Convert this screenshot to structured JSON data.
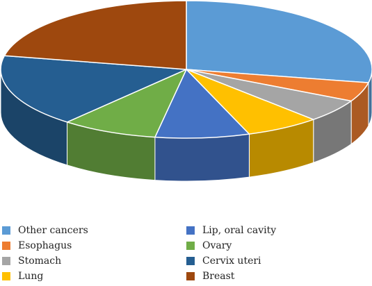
{
  "chart_data": {
    "type": "pie",
    "style": "3d",
    "legend_position": "bottom",
    "slices": [
      {
        "label": "Other cancers",
        "value": 28.1,
        "color": "#5B9BD5"
      },
      {
        "label": "Esophagus",
        "value": 4.5,
        "color": "#ED7D31"
      },
      {
        "label": "Stomach",
        "value": 5.4,
        "color": "#A5A5A5"
      },
      {
        "label": "Lung",
        "value": 6.5,
        "color": "#FFC000"
      },
      {
        "label": "Lip, oral cavity",
        "value": 8.2,
        "color": "#4472C4"
      },
      {
        "label": "Ovary",
        "value": 8.4,
        "color": "#70AD47"
      },
      {
        "label": "Cervix uteri",
        "value": 17.1,
        "color": "#255E91"
      },
      {
        "label": "Breast",
        "value": 21.8,
        "color": "#9E480E"
      }
    ]
  }
}
